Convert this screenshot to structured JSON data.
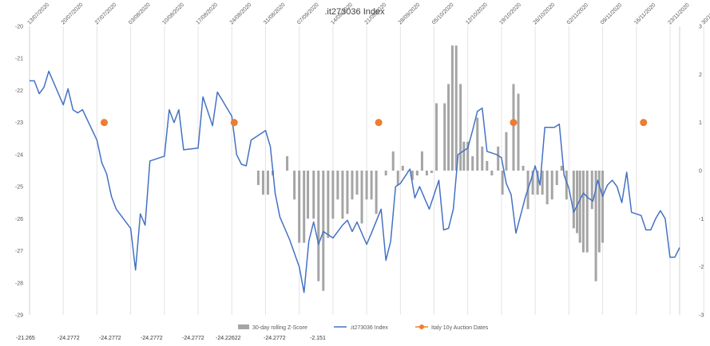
{
  "chart_data": {
    "type": "bar+line+scatter",
    "title": ".it273036 Index",
    "y_left": {
      "min": -29,
      "max": -20,
      "step": 1
    },
    "y_right": {
      "min": -3,
      "max": 3,
      "step": 1
    },
    "x_ticks": [
      "13/07/2020",
      "20/07/2020",
      "27/07/2020",
      "03/08/2020",
      "10/08/2020",
      "17/08/2020",
      "24/08/2020",
      "31/08/2020",
      "07/09/2020",
      "14/09/2020",
      "21/09/2020",
      "28/09/2020",
      "05/10/2020",
      "12/10/2020",
      "19/10/2020",
      "26/10/2020",
      "02/11/2020",
      "09/11/2020",
      "16/11/2020",
      "23/11/2020",
      "30/11/2020"
    ],
    "grid": "vertical",
    "legend_position": "bottom",
    "series": [
      {
        "name": "30-day rolling Z-Score",
        "kind": "bar",
        "axis": "right",
        "color": "#a5a5a5",
        "points": [
          [
            47.5,
            -0.3
          ],
          [
            48.5,
            -0.5
          ],
          [
            49.5,
            -0.5
          ],
          [
            50.5,
            -0.1
          ],
          [
            53.5,
            0.3
          ],
          [
            55,
            -0.6
          ],
          [
            56,
            -1.5
          ],
          [
            57,
            -1.5
          ],
          [
            57.8,
            -1.0
          ],
          [
            59,
            -1.0
          ],
          [
            60,
            -2.3
          ],
          [
            61,
            -2.5
          ],
          [
            62,
            -1.4
          ],
          [
            63,
            -1.0
          ],
          [
            64,
            -0.6
          ],
          [
            65,
            -1.0
          ],
          [
            66,
            -0.9
          ],
          [
            67,
            -0.6
          ],
          [
            68,
            -0.5
          ],
          [
            69,
            -1.1
          ],
          [
            70,
            -0.6
          ],
          [
            71,
            -0.6
          ],
          [
            72,
            -0.9
          ],
          [
            74,
            -0.1
          ],
          [
            75.5,
            0.4
          ],
          [
            76.5,
            -0.3
          ],
          [
            77.5,
            0.1
          ],
          [
            78.5,
            0
          ],
          [
            79.5,
            -0.2
          ],
          [
            80.5,
            -0.1
          ],
          [
            81.5,
            0.4
          ],
          [
            82.5,
            -0.1
          ],
          [
            83.5,
            -0.05
          ],
          [
            84.5,
            1.4
          ],
          [
            86.2,
            1.4
          ],
          [
            87,
            1.8
          ],
          [
            87.8,
            2.6
          ],
          [
            88.6,
            2.6
          ],
          [
            89.5,
            1.8
          ],
          [
            90.2,
            0.6
          ],
          [
            91,
            0.6
          ],
          [
            92,
            0.3
          ],
          [
            93,
            1.1
          ],
          [
            94,
            0.5
          ],
          [
            95,
            0.2
          ],
          [
            96,
            -0.1
          ],
          [
            97.3,
            0.5
          ],
          [
            98.2,
            -0.5
          ],
          [
            99,
            0.8
          ],
          [
            100.5,
            1.8
          ],
          [
            101.5,
            1.6
          ],
          [
            102.5,
            0.1
          ],
          [
            103.5,
            -0.8
          ],
          [
            104.5,
            -0.5
          ],
          [
            105.5,
            -0.5
          ],
          [
            106.5,
            -0.5
          ],
          [
            107.5,
            -0.7
          ],
          [
            108.5,
            -0.6
          ],
          [
            109.5,
            -0.3
          ],
          [
            110.5,
            0.1
          ],
          [
            111.5,
            -0.6
          ],
          [
            113,
            -1.2
          ],
          [
            113.7,
            -1.3
          ],
          [
            114.3,
            -1.5
          ],
          [
            115,
            -1.7
          ],
          [
            115.8,
            -1.7
          ],
          [
            116.8,
            -0.8
          ],
          [
            117.6,
            -2.3
          ],
          [
            118.3,
            -1.7
          ],
          [
            119,
            -1.5
          ]
        ]
      },
      {
        "name": ".it273036 Index",
        "kind": "line",
        "axis": "left",
        "color": "#4472c4",
        "points": [
          [
            0,
            -21.7
          ],
          [
            1,
            -21.7
          ],
          [
            2,
            -22.1
          ],
          [
            3,
            -21.9
          ],
          [
            4,
            -21.4
          ],
          [
            6,
            -22.1
          ],
          [
            7,
            -22.45
          ],
          [
            8,
            -21.95
          ],
          [
            9,
            -22.6
          ],
          [
            10,
            -22.7
          ],
          [
            11,
            -22.6
          ],
          [
            14,
            -23.55
          ],
          [
            15,
            -24.25
          ],
          [
            16,
            -24.6
          ],
          [
            17,
            -25.3
          ],
          [
            18,
            -25.7
          ],
          [
            21,
            -26.3
          ],
          [
            22,
            -27.6
          ],
          [
            23,
            -25.85
          ],
          [
            24,
            -26.2
          ],
          [
            25,
            -24.2
          ],
          [
            28,
            -24.05
          ],
          [
            29,
            -22.6
          ],
          [
            30,
            -23.0
          ],
          [
            31,
            -22.6
          ],
          [
            32,
            -23.85
          ],
          [
            35,
            -23.8
          ],
          [
            36,
            -22.2
          ],
          [
            38,
            -23.1
          ],
          [
            39,
            -22.05
          ],
          [
            42,
            -22.8
          ],
          [
            43,
            -24.0
          ],
          [
            44,
            -24.3
          ],
          [
            45,
            -24.35
          ],
          [
            46,
            -23.55
          ],
          [
            49,
            -23.25
          ],
          [
            50,
            -23.75
          ],
          [
            51,
            -25.2
          ],
          [
            52,
            -25.95
          ],
          [
            54,
            -26.65
          ],
          [
            56,
            -27.5
          ],
          [
            57,
            -28.3
          ],
          [
            58,
            -26.7
          ],
          [
            59,
            -26.1
          ],
          [
            60,
            -26.8
          ],
          [
            61,
            -26.4
          ],
          [
            62,
            -26.5
          ],
          [
            63,
            -26.6
          ],
          [
            65,
            -26.2
          ],
          [
            66,
            -26.05
          ],
          [
            67,
            -26.4
          ],
          [
            68,
            -26.1
          ],
          [
            70,
            -26.8
          ],
          [
            71,
            -26.45
          ],
          [
            73,
            -25.7
          ],
          [
            74,
            -27.3
          ],
          [
            75,
            -26.7
          ],
          [
            76,
            -25.0
          ],
          [
            77,
            -24.9
          ],
          [
            79,
            -24.45
          ],
          [
            80,
            -25.35
          ],
          [
            81,
            -25.0
          ],
          [
            82,
            -25.35
          ],
          [
            83,
            -25.7
          ],
          [
            85,
            -24.8
          ],
          [
            86,
            -26.35
          ],
          [
            87,
            -26.3
          ],
          [
            88,
            -25.7
          ],
          [
            89,
            -24.0
          ],
          [
            91,
            -23.8
          ],
          [
            92,
            -23.25
          ],
          [
            93,
            -22.65
          ],
          [
            94,
            -22.55
          ],
          [
            95,
            -23.9
          ],
          [
            97,
            -24.0
          ],
          [
            98,
            -24.1
          ],
          [
            99,
            -24.9
          ],
          [
            100,
            -25.25
          ],
          [
            101,
            -26.45
          ],
          [
            103,
            -25.3
          ],
          [
            104,
            -24.85
          ],
          [
            105,
            -24.35
          ],
          [
            106,
            -24.95
          ],
          [
            107,
            -23.15
          ],
          [
            109,
            -23.15
          ],
          [
            110,
            -23.05
          ],
          [
            111,
            -24.65
          ],
          [
            112,
            -25.05
          ],
          [
            113,
            -25.8
          ],
          [
            115,
            -25.2
          ],
          [
            116,
            -25.35
          ],
          [
            117,
            -25.45
          ],
          [
            118,
            -24.8
          ],
          [
            119,
            -25.3
          ],
          [
            120,
            -24.95
          ],
          [
            121,
            -24.8
          ],
          [
            122,
            -25.0
          ],
          [
            123,
            -25.5
          ],
          [
            124,
            -24.55
          ],
          [
            125,
            -25.8
          ],
          [
            127,
            -25.9
          ],
          [
            128,
            -26.35
          ],
          [
            129,
            -26.35
          ],
          [
            130,
            -26.0
          ],
          [
            131,
            -25.75
          ],
          [
            132,
            -26.0
          ],
          [
            133,
            -27.2
          ],
          [
            134,
            -27.2
          ],
          [
            135,
            -26.9
          ]
        ]
      },
      {
        "name": "Italy 10y Auction Dates",
        "kind": "scatter",
        "axis": "left",
        "color": "#ed7d31",
        "points": [
          [
            15.5,
            -23.0
          ],
          [
            42.5,
            -23.0
          ],
          [
            72.5,
            -23.0
          ],
          [
            100.5,
            -23.0
          ],
          [
            127.5,
            -23.0
          ]
        ]
      }
    ]
  },
  "bottom_strip_values": [
    "-21.265",
    "-24.2772",
    "-24.2772",
    "-24.2772",
    "-24.2772",
    "-24.22622",
    "-24.2772",
    "-2.151"
  ]
}
